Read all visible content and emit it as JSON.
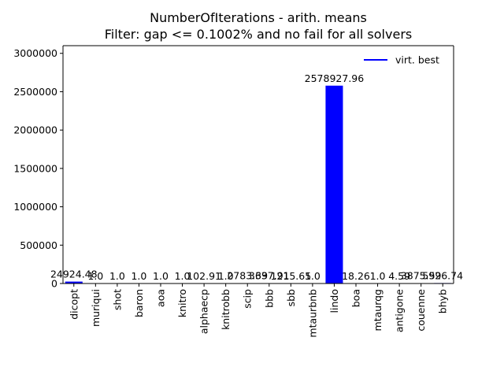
{
  "chart_data": {
    "type": "bar",
    "title_line1": "NumberOfIterations - arith. means",
    "title_line2": "Filter: gap <= 0.1002% and no fail for all solvers",
    "xlabel": "",
    "ylabel": "",
    "ylim": [
      0,
      3100000
    ],
    "yticks": [
      0,
      500000,
      1000000,
      1500000,
      2000000,
      2500000,
      3000000
    ],
    "ytick_labels": [
      "0",
      "500000",
      "1000000",
      "1500000",
      "2000000",
      "2500000",
      "3000000"
    ],
    "grid": false,
    "legend_position": "top-right",
    "bar_color": "#0000ff",
    "series": [
      {
        "name": "virt. best",
        "color": "#0000ff",
        "values": [
          24924.48,
          1.0,
          1.0,
          1.0,
          1.0,
          1.0,
          102.91,
          1.0,
          2783.39,
          3637.91,
          1215.65,
          1.0,
          2578927.96,
          18.26,
          1.0,
          4.59,
          3875.59,
          5926.74
        ]
      }
    ],
    "categories": [
      "dicopt",
      "muriqui",
      "shot",
      "baron",
      "aoa",
      "knitro",
      "alphaecp",
      "knitrobb",
      "scip",
      "bbb",
      "sbb",
      "mtaurbnb",
      "lindo",
      "boa",
      "mtaurqg",
      "antigone",
      "couenne",
      "bhyb"
    ],
    "data_labels": [
      "24924.48",
      "1.0",
      "1.0",
      "1.0",
      "1.0",
      "1.0",
      "102.91",
      "1.0",
      "2783.39",
      "3637.91",
      "1215.65",
      "1.0",
      "2578927.96",
      "18.26",
      "1.0",
      "4.59",
      "3875.59",
      "5926.74"
    ]
  }
}
